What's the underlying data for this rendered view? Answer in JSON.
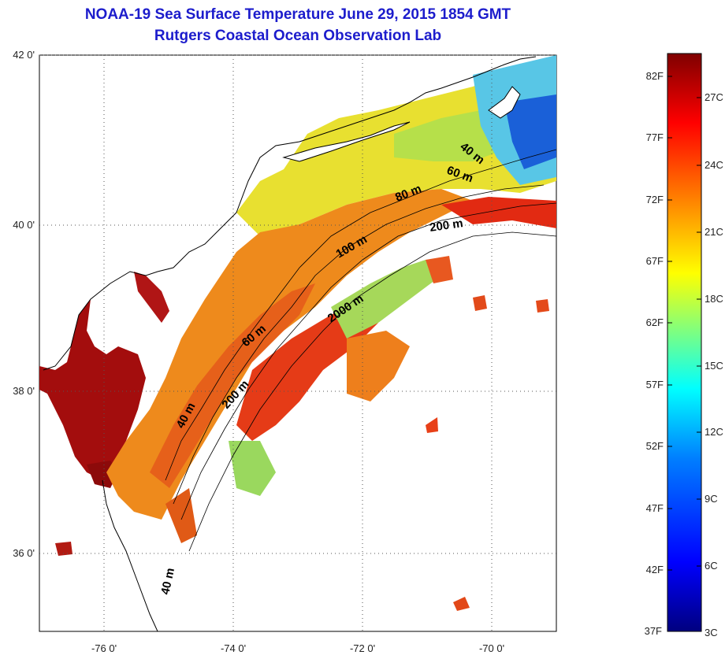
{
  "title": "NOAA-19 Sea Surface Temperature June 29, 2015 1854 GMT",
  "subtitle": "Rutgers Coastal Ocean Observation Lab",
  "map": {
    "lat_labels": [
      "42 0'",
      "40 0'",
      "38 0'",
      "36 0'"
    ],
    "lat_values": [
      42,
      40,
      38,
      36
    ],
    "lon_labels": [
      "-76 0'",
      "-74 0'",
      "-72 0'",
      "-70 0'"
    ],
    "lon_values": [
      -76,
      -74,
      -72,
      -70
    ],
    "lon_range": [
      -77,
      -69
    ],
    "lat_range": [
      35,
      42.1
    ],
    "contours": [
      {
        "label": "40 m"
      },
      {
        "label": "60 m"
      },
      {
        "label": "80 m"
      },
      {
        "label": "200 m"
      },
      {
        "label": "100 m"
      },
      {
        "label": "2000 m"
      },
      {
        "label": "60 m"
      },
      {
        "label": "200 m"
      },
      {
        "label": "40 m"
      },
      {
        "label": "40 m"
      }
    ]
  },
  "colorbar": {
    "fahrenheit_labels": [
      "82F",
      "77F",
      "72F",
      "67F",
      "62F",
      "57F",
      "52F",
      "47F",
      "42F",
      "37F"
    ],
    "celsius_labels": [
      "27C",
      "24C",
      "21C",
      "18C",
      "15C",
      "12C",
      "9C",
      "6C",
      "3C"
    ],
    "range_c": [
      3,
      28.5
    ],
    "colors": [
      "#00007f",
      "#0000ff",
      "#007fff",
      "#00ffff",
      "#7fff7f",
      "#ffff00",
      "#ff7f00",
      "#ff0000",
      "#7f0000"
    ]
  }
}
